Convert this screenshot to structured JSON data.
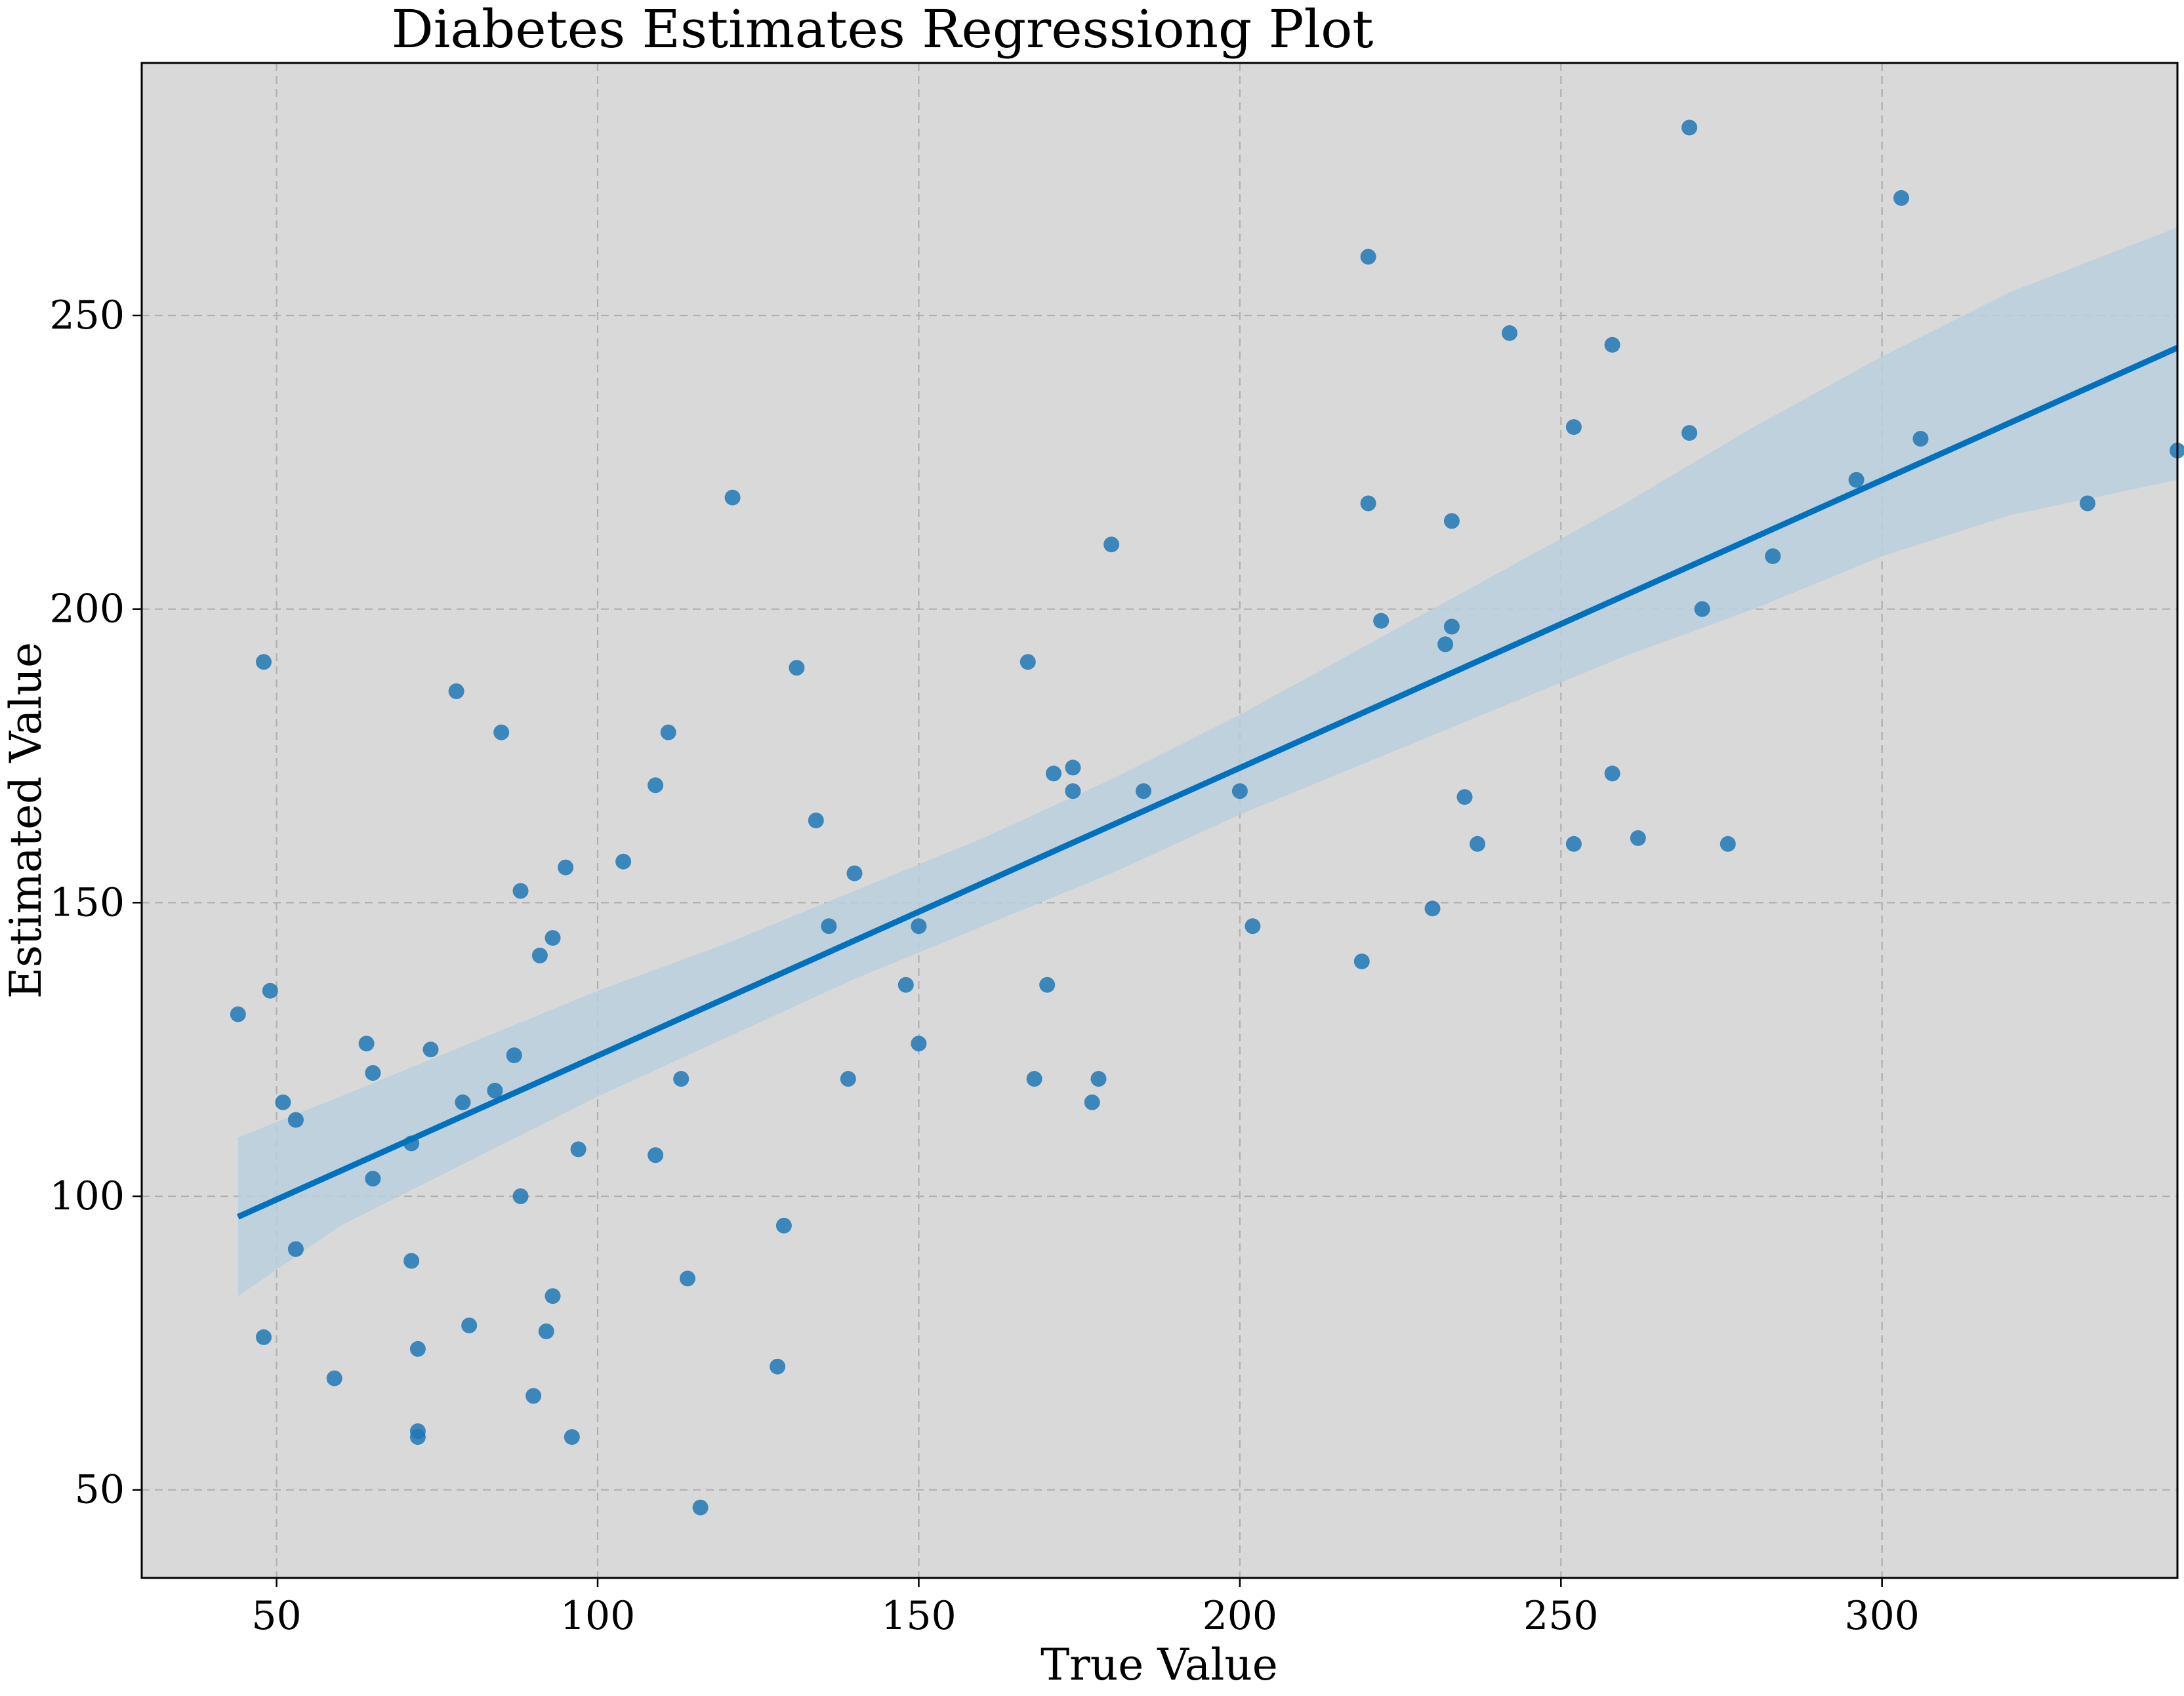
{
  "chart_data": {
    "type": "scatter",
    "title": "Diabetes Estimates Regressiong Plot",
    "xlabel": "True Value",
    "ylabel": "Estimated Value",
    "xlim": [
      29,
      346
    ],
    "ylim": [
      35,
      293
    ],
    "xticks": [
      50,
      100,
      150,
      200,
      250,
      300
    ],
    "yticks": [
      50,
      100,
      150,
      200,
      250
    ],
    "grid": true,
    "background_color": "#d9d9d9",
    "point_color": "#1f77b4",
    "line_color": "#0072bd",
    "band_color": "#b8cfdc",
    "points": [
      [
        44,
        131
      ],
      [
        48,
        191
      ],
      [
        48,
        76
      ],
      [
        49,
        135
      ],
      [
        51,
        116
      ],
      [
        53,
        113
      ],
      [
        53,
        91
      ],
      [
        59,
        69
      ],
      [
        64,
        126
      ],
      [
        65,
        121
      ],
      [
        65,
        103
      ],
      [
        71,
        109
      ],
      [
        71,
        89
      ],
      [
        72,
        74
      ],
      [
        72,
        60
      ],
      [
        72,
        59
      ],
      [
        74,
        125
      ],
      [
        78,
        186
      ],
      [
        79,
        116
      ],
      [
        80,
        78
      ],
      [
        84,
        118
      ],
      [
        85,
        179
      ],
      [
        87,
        124
      ],
      [
        88,
        152
      ],
      [
        88,
        100
      ],
      [
        90,
        66
      ],
      [
        91,
        141
      ],
      [
        92,
        77
      ],
      [
        93,
        144
      ],
      [
        93,
        83
      ],
      [
        95,
        156
      ],
      [
        96,
        59
      ],
      [
        97,
        108
      ],
      [
        104,
        157
      ],
      [
        109,
        170
      ],
      [
        109,
        107
      ],
      [
        111,
        179
      ],
      [
        113,
        120
      ],
      [
        114,
        86
      ],
      [
        116,
        47
      ],
      [
        121,
        219
      ],
      [
        128,
        71
      ],
      [
        129,
        95
      ],
      [
        131,
        190
      ],
      [
        134,
        164
      ],
      [
        136,
        146
      ],
      [
        139,
        120
      ],
      [
        140,
        155
      ],
      [
        148,
        136
      ],
      [
        150,
        146
      ],
      [
        150,
        126
      ],
      [
        167,
        191
      ],
      [
        168,
        120
      ],
      [
        170,
        136
      ],
      [
        171,
        172
      ],
      [
        174,
        173
      ],
      [
        174,
        169
      ],
      [
        177,
        116
      ],
      [
        178,
        120
      ],
      [
        180,
        211
      ],
      [
        185,
        169
      ],
      [
        200,
        169
      ],
      [
        202,
        146
      ],
      [
        219,
        140
      ],
      [
        220,
        260
      ],
      [
        220,
        218
      ],
      [
        222,
        198
      ],
      [
        230,
        149
      ],
      [
        232,
        194
      ],
      [
        233,
        197
      ],
      [
        233,
        215
      ],
      [
        235,
        168
      ],
      [
        237,
        160
      ],
      [
        242,
        247
      ],
      [
        252,
        231
      ],
      [
        252,
        160
      ],
      [
        258,
        245
      ],
      [
        258,
        172
      ],
      [
        262,
        161
      ],
      [
        270,
        282
      ],
      [
        270,
        230
      ],
      [
        272,
        200
      ],
      [
        276,
        160
      ],
      [
        283,
        209
      ],
      [
        296,
        222
      ],
      [
        303,
        270
      ],
      [
        306,
        229
      ],
      [
        332,
        218
      ],
      [
        346,
        227
      ]
    ],
    "regression": {
      "x": [
        44,
        346
      ],
      "y": [
        96.5,
        244.5
      ]
    },
    "confidence_band": {
      "x": [
        44,
        60,
        80,
        100,
        120,
        140,
        160,
        180,
        200,
        220,
        240,
        260,
        280,
        300,
        320,
        346
      ],
      "upper": [
        110,
        117,
        126,
        135,
        143,
        152,
        161,
        171,
        182,
        194,
        206,
        218,
        231,
        243,
        254,
        265
      ],
      "lower": [
        83,
        95,
        106,
        117,
        127,
        137,
        146,
        155,
        165,
        174,
        183,
        192,
        200,
        209,
        216,
        222
      ]
    }
  }
}
